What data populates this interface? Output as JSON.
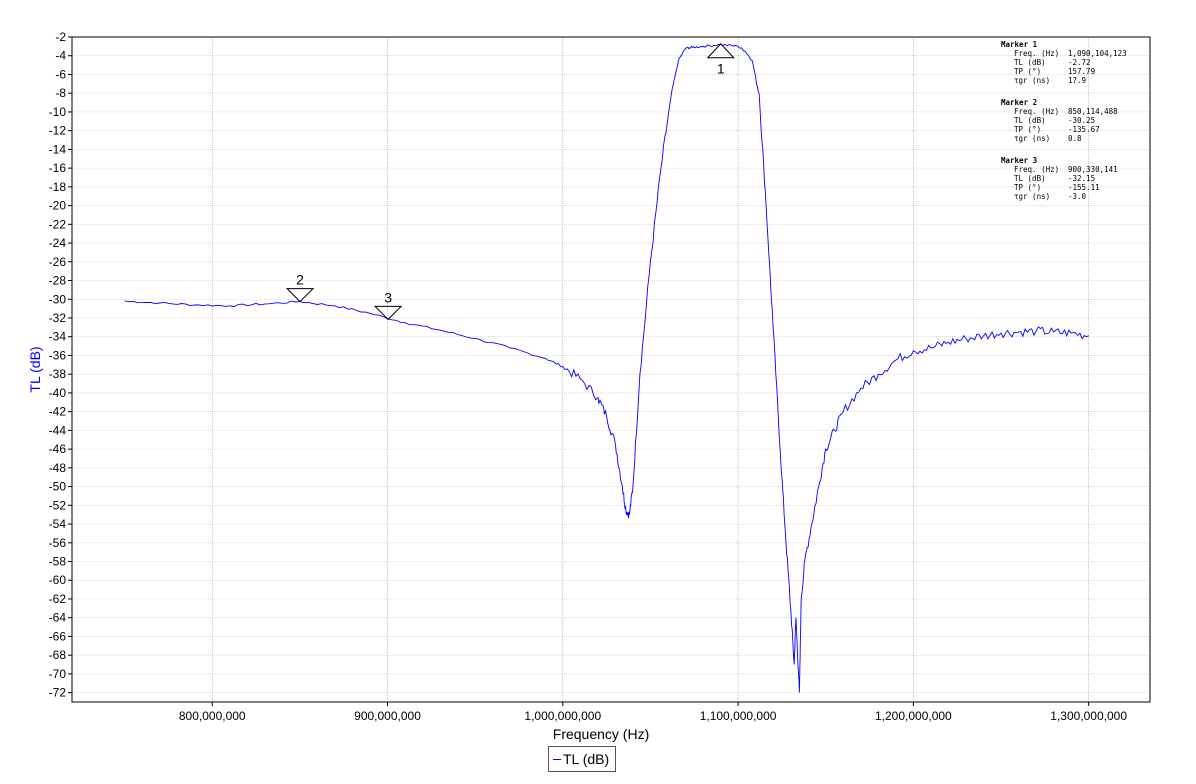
{
  "chart_data": {
    "type": "line",
    "xlabel": "Frequency (Hz)",
    "ylabel": "TL (dB)",
    "xlim": [
      720000000,
      1335000000
    ],
    "ylim": [
      -73,
      -2
    ],
    "x_ticks": [
      800000000,
      900000000,
      1000000000,
      1100000000,
      1200000000,
      1300000000
    ],
    "x_tick_labels": [
      "800,000,000",
      "900,000,000",
      "1,000,000,000",
      "1,100,000,000",
      "1,200,000,000",
      "1,300,000,000"
    ],
    "y_ticks": [
      -2,
      -4,
      -6,
      -8,
      -10,
      -12,
      -14,
      -16,
      -18,
      -20,
      -22,
      -24,
      -26,
      -28,
      -30,
      -32,
      -34,
      -36,
      -38,
      -40,
      -42,
      -44,
      -46,
      -48,
      -50,
      -52,
      -54,
      -56,
      -58,
      -60,
      -62,
      -64,
      -66,
      -68,
      -70,
      -72
    ],
    "grid": true,
    "legend": "bottom-center",
    "series": [
      {
        "name": "TL (dB)",
        "color": "#0000ff",
        "x": [
          750000000,
          770000000,
          790000000,
          810000000,
          830000000,
          850000000,
          870000000,
          890000000,
          910000000,
          930000000,
          950000000,
          970000000,
          990000000,
          1000000000,
          1010000000,
          1020000000,
          1025000000,
          1030000000,
          1034000000,
          1036000000,
          1038000000,
          1040000000,
          1044000000,
          1050000000,
          1056000000,
          1062000000,
          1066000000,
          1070000000,
          1074000000,
          1080000000,
          1090000000,
          1100000000,
          1104000000,
          1108000000,
          1112000000,
          1116000000,
          1120000000,
          1124000000,
          1127000000,
          1130000000,
          1132000000,
          1133000000,
          1135000000,
          1136000000,
          1138000000,
          1142000000,
          1146000000,
          1150000000,
          1155000000,
          1160000000,
          1170000000,
          1180000000,
          1190000000,
          1200000000,
          1210000000,
          1220000000,
          1230000000,
          1240000000,
          1250000000,
          1260000000,
          1270000000,
          1280000000,
          1290000000,
          1300000000
        ],
        "values": [
          -30.2,
          -30.4,
          -30.6,
          -30.7,
          -30.5,
          -30.25,
          -30.7,
          -31.5,
          -32.5,
          -33.3,
          -34.2,
          -35.2,
          -36.3,
          -37.2,
          -38.5,
          -40.5,
          -42.5,
          -45.5,
          -50.0,
          -52.5,
          -53.0,
          -50.0,
          -38.0,
          -26.0,
          -16.0,
          -8.0,
          -4.5,
          -3.2,
          -3.1,
          -3.0,
          -2.8,
          -3.0,
          -3.5,
          -4.5,
          -8.0,
          -20.0,
          -33.0,
          -46.0,
          -55.0,
          -63.0,
          -69.0,
          -64.0,
          -72.0,
          -62.0,
          -58.0,
          -54.0,
          -50.0,
          -46.0,
          -44.0,
          -42.0,
          -39.5,
          -38.0,
          -36.5,
          -35.5,
          -35.2,
          -34.6,
          -34.2,
          -33.9,
          -33.6,
          -33.5,
          -33.4,
          -33.5,
          -33.6,
          -33.9
        ]
      }
    ],
    "markers": [
      {
        "label": "1",
        "x": 1090104123,
        "y": -2.72,
        "direction": "up"
      },
      {
        "label": "2",
        "x": 850114488,
        "y": -30.25,
        "direction": "down"
      },
      {
        "label": "3",
        "x": 900330141,
        "y": -32.15,
        "direction": "down"
      }
    ]
  },
  "marker_info": [
    {
      "title": "Marker 1",
      "rows": [
        [
          "Freq. (Hz)",
          "1,090,104,123"
        ],
        [
          "TL (dB)",
          "-2.72"
        ],
        [
          "TP (°)",
          "157.79"
        ],
        [
          "τgr (ns)",
          "17.9"
        ]
      ]
    },
    {
      "title": "Marker 2",
      "rows": [
        [
          "Freq. (Hz)",
          "850,114,488"
        ],
        [
          "TL (dB)",
          "-30.25"
        ],
        [
          "TP (°)",
          "-135.67"
        ],
        [
          "τgr (ns)",
          "0.8"
        ]
      ]
    },
    {
      "title": "Marker 3",
      "rows": [
        [
          "Freq. (Hz)",
          "900,330,141"
        ],
        [
          "TL (dB)",
          "-32.15"
        ],
        [
          "TP (°)",
          "-155.11"
        ],
        [
          "τgr (ns)",
          "-3.0"
        ]
      ]
    }
  ],
  "legend": {
    "label": "TL (dB)",
    "color": "#0000ff"
  }
}
